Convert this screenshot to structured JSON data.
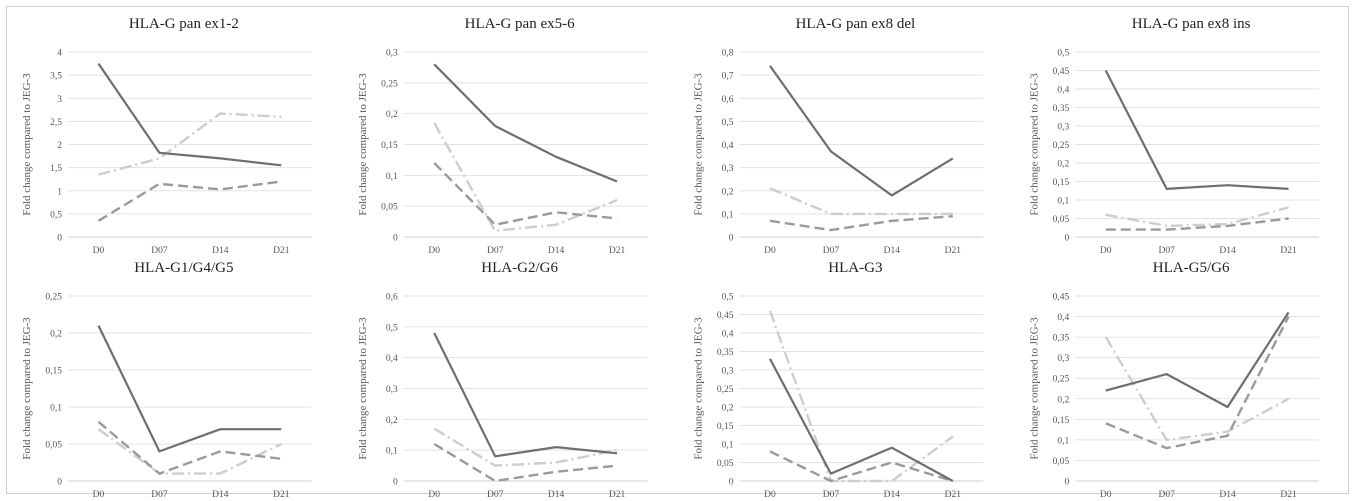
{
  "style": {
    "line_colors": [
      "#6e6e6e",
      "#9a9a9a",
      "#cdcdcd"
    ],
    "line_styles": [
      "solid",
      "dashed",
      "dash-dot"
    ]
  },
  "chart_data": [
    {
      "type": "line",
      "title": "HLA-G pan ex1-2",
      "ylabel": "Fold change compared to JEG-3",
      "categories": [
        "D0",
        "D07",
        "D14",
        "D21"
      ],
      "ylim": [
        0,
        4
      ],
      "yticks": [
        "0",
        "0,5",
        "1",
        "1,5",
        "2",
        "2,5",
        "3",
        "3,5",
        "4"
      ],
      "grid": true,
      "series": [
        {
          "values": [
            3.75,
            1.82,
            1.7,
            1.55
          ]
        },
        {
          "values": [
            0.35,
            1.15,
            1.03,
            1.2
          ]
        },
        {
          "values": [
            1.35,
            1.7,
            2.67,
            2.6
          ]
        }
      ]
    },
    {
      "type": "line",
      "title": "HLA-G pan ex5-6",
      "ylabel": "Fold change compared to JEG-3",
      "categories": [
        "D0",
        "D07",
        "D14",
        "D21"
      ],
      "ylim": [
        0,
        0.3
      ],
      "yticks": [
        "0",
        "0,05",
        "0,1",
        "0,15",
        "0,2",
        "0,25",
        "0,3"
      ],
      "grid": true,
      "series": [
        {
          "values": [
            0.28,
            0.18,
            0.13,
            0.09
          ]
        },
        {
          "values": [
            0.12,
            0.02,
            0.04,
            0.03
          ]
        },
        {
          "values": [
            0.185,
            0.01,
            0.02,
            0.06
          ]
        }
      ]
    },
    {
      "type": "line",
      "title": "HLA-G pan ex8 del",
      "ylabel": "Fold change compared to JEG-3",
      "categories": [
        "D0",
        "D07",
        "D14",
        "D21"
      ],
      "ylim": [
        0,
        0.8
      ],
      "yticks": [
        "0",
        "0,1",
        "0,2",
        "0,3",
        "0,4",
        "0,5",
        "0,6",
        "0,7",
        "0,8"
      ],
      "grid": true,
      "series": [
        {
          "values": [
            0.74,
            0.37,
            0.18,
            0.34
          ]
        },
        {
          "values": [
            0.07,
            0.03,
            0.07,
            0.09
          ]
        },
        {
          "values": [
            0.21,
            0.1,
            0.1,
            0.1
          ]
        }
      ]
    },
    {
      "type": "line",
      "title": "HLA-G pan ex8 ins",
      "ylabel": "Fold change compared to JEG-3",
      "categories": [
        "D0",
        "D07",
        "D14",
        "D21"
      ],
      "ylim": [
        0,
        0.5
      ],
      "yticks": [
        "0",
        "0,05",
        "0,1",
        "0,15",
        "0,2",
        "0,25",
        "0,3",
        "0,35",
        "0,4",
        "0,45",
        "0,5"
      ],
      "grid": true,
      "series": [
        {
          "values": [
            0.45,
            0.13,
            0.14,
            0.13
          ]
        },
        {
          "values": [
            0.02,
            0.02,
            0.03,
            0.05
          ]
        },
        {
          "values": [
            0.06,
            0.03,
            0.035,
            0.08
          ]
        }
      ]
    },
    {
      "type": "line",
      "title": "HLA-G1/G4/G5",
      "ylabel": "Fold change compared to JEG-3",
      "categories": [
        "D0",
        "D07",
        "D14",
        "D21"
      ],
      "ylim": [
        0,
        0.25
      ],
      "yticks": [
        "0",
        "0,05",
        "0,1",
        "0,15",
        "0,2",
        "0,25"
      ],
      "grid": true,
      "series": [
        {
          "values": [
            0.21,
            0.04,
            0.07,
            0.07
          ]
        },
        {
          "values": [
            0.08,
            0.01,
            0.04,
            0.03
          ]
        },
        {
          "values": [
            0.07,
            0.01,
            0.01,
            0.05
          ]
        }
      ]
    },
    {
      "type": "line",
      "title": "HLA-G2/G6",
      "ylabel": "Fold change compared to JEG-3",
      "categories": [
        "D0",
        "D07",
        "D14",
        "D21"
      ],
      "ylim": [
        0,
        0.6
      ],
      "yticks": [
        "0",
        "0,1",
        "0,2",
        "0,3",
        "0,4",
        "0,5",
        "0,6"
      ],
      "grid": true,
      "series": [
        {
          "values": [
            0.48,
            0.08,
            0.11,
            0.09
          ]
        },
        {
          "values": [
            0.12,
            0.0,
            0.03,
            0.05
          ]
        },
        {
          "values": [
            0.17,
            0.05,
            0.06,
            0.1
          ]
        }
      ]
    },
    {
      "type": "line",
      "title": "HLA-G3",
      "ylabel": "Fold change compared to JEG-3",
      "categories": [
        "D0",
        "D07",
        "D14",
        "D21"
      ],
      "ylim": [
        0,
        0.5
      ],
      "yticks": [
        "0",
        "0,05",
        "0,1",
        "0,15",
        "0,2",
        "0,25",
        "0,3",
        "0,35",
        "0,4",
        "0,45",
        "0,5"
      ],
      "grid": true,
      "series": [
        {
          "values": [
            0.33,
            0.02,
            0.09,
            0.0
          ]
        },
        {
          "values": [
            0.08,
            0.0,
            0.05,
            0.0
          ]
        },
        {
          "values": [
            0.46,
            0.0,
            0.0,
            0.12
          ]
        }
      ]
    },
    {
      "type": "line",
      "title": "HLA-G5/G6",
      "ylabel": "Fold change compared to JEG-3",
      "categories": [
        "D0",
        "D07",
        "D14",
        "D21"
      ],
      "ylim": [
        0,
        0.45
      ],
      "yticks": [
        "0",
        "0,05",
        "0,1",
        "0,15",
        "0,2",
        "0,25",
        "0,3",
        "0,35",
        "0,4",
        "0,45"
      ],
      "grid": true,
      "series": [
        {
          "values": [
            0.22,
            0.26,
            0.18,
            0.41
          ]
        },
        {
          "values": [
            0.14,
            0.08,
            0.11,
            0.4
          ]
        },
        {
          "values": [
            0.35,
            0.1,
            0.12,
            0.2
          ]
        }
      ]
    }
  ]
}
